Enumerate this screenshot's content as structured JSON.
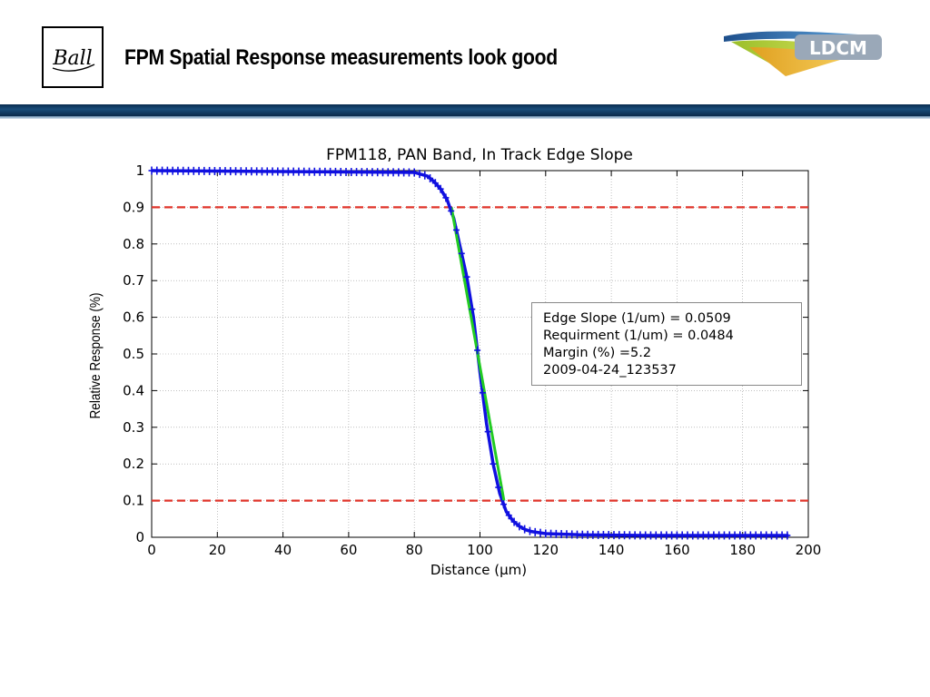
{
  "header": {
    "title": "FPM Spatial Response measurements look good",
    "logo_left_text": "Ball",
    "logo_right_text": "LDCM"
  },
  "chart_data": {
    "type": "line",
    "title": "FPM118, PAN Band, In Track Edge Slope",
    "xlabel": "Distance (μm)",
    "ylabel": "Relative Response (%)",
    "xlim": [
      0,
      200
    ],
    "ylim": [
      0,
      1
    ],
    "xticks": [
      0,
      20,
      40,
      60,
      80,
      100,
      120,
      140,
      160,
      180,
      200
    ],
    "yticks": [
      0,
      0.1,
      0.2,
      0.3,
      0.4,
      0.5,
      0.6,
      0.7,
      0.8,
      0.9,
      1
    ],
    "grid": true,
    "reference_lines": [
      {
        "y": 0.9,
        "color": "#e0342a",
        "style": "dashed"
      },
      {
        "y": 0.1,
        "color": "#e0342a",
        "style": "dashed"
      }
    ],
    "series": [
      {
        "kind": "measured",
        "color": "#1010e0",
        "marker": "+",
        "x": [
          0,
          80,
          84,
          86,
          88,
          90,
          92,
          94,
          96,
          98,
          100,
          102,
          104,
          106,
          108,
          110,
          112,
          114,
          116,
          120,
          130,
          150,
          194
        ],
        "y": [
          1.0,
          0.995,
          0.985,
          0.97,
          0.95,
          0.92,
          0.87,
          0.79,
          0.71,
          0.6,
          0.45,
          0.31,
          0.2,
          0.12,
          0.07,
          0.045,
          0.03,
          0.02,
          0.015,
          0.01,
          0.007,
          0.005,
          0.005
        ]
      },
      {
        "kind": "slope_fit",
        "color": "#22cc22",
        "x": [
          91.3,
          107.3
        ],
        "y": [
          0.9,
          0.1
        ]
      }
    ],
    "annotation": [
      "Edge Slope (1/um) = 0.0509",
      "Requirment (1/um) = 0.0484",
      "Margin (%) =5.2",
      "2009-04-24_123537"
    ]
  }
}
